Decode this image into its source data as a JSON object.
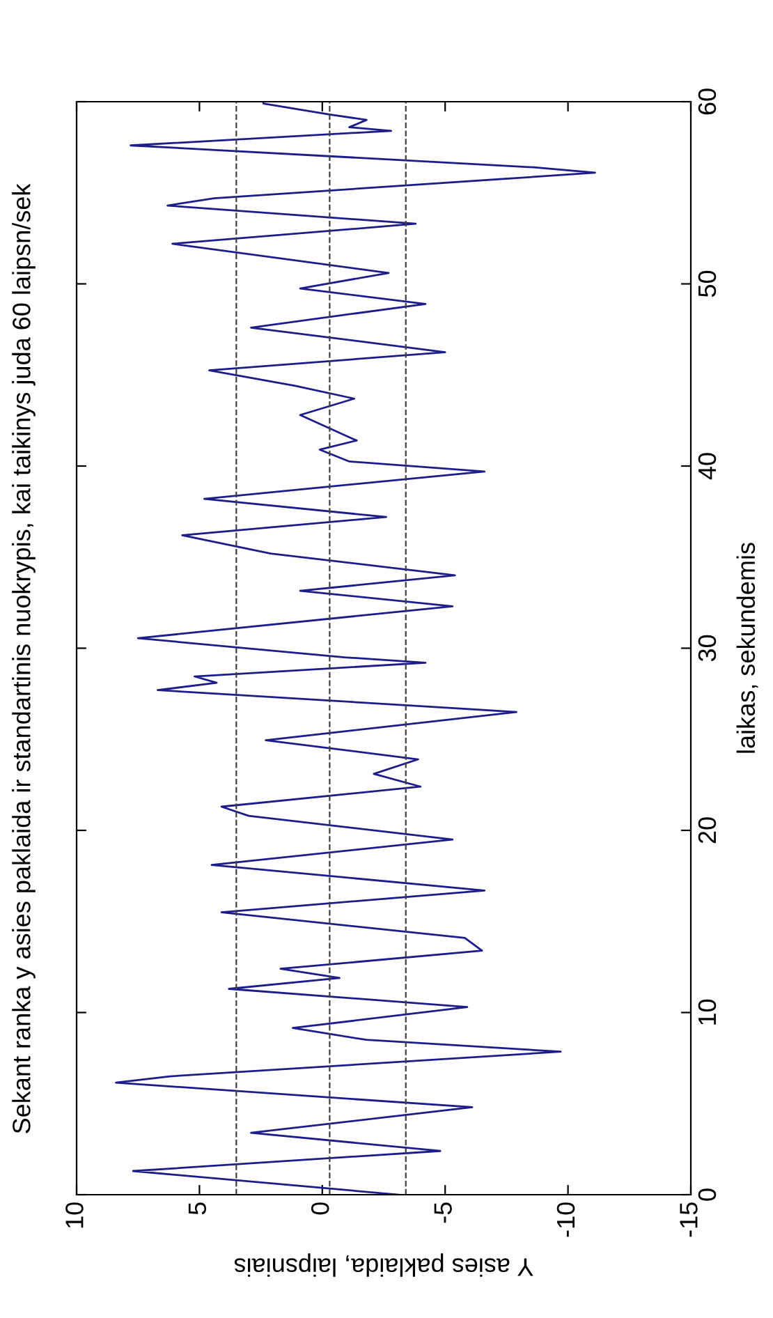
{
  "chart_data": {
    "type": "line",
    "title": "Sekant ranka y asies paklaida ir standartinis nuokrypis, kai taikinys juda 60 laipsn/sek",
    "xlabel": "Y asies paklaida, laipsniais",
    "ylabel": "laikas, sekundemis",
    "xlim": [
      10,
      -15
    ],
    "xticks": [
      10,
      5,
      0,
      -5,
      -10,
      -15
    ],
    "ylim": [
      0,
      60
    ],
    "yticks": [
      0,
      10,
      20,
      30,
      40,
      50,
      60
    ],
    "grid": false,
    "legend": false,
    "marker": "none",
    "line_style": "solid",
    "ref_lines": [
      {
        "axis": "x",
        "value": 3.5,
        "color": "#404040",
        "line_style": "dashed"
      },
      {
        "axis": "x",
        "value": -0.3,
        "color": "#404040",
        "line_style": "dashed"
      },
      {
        "axis": "x",
        "value": -3.4,
        "color": "#404040",
        "line_style": "dashed"
      }
    ],
    "series": [
      {
        "color": "#1c1c8a",
        "x": [
          -3.1,
          7.7,
          -4.8,
          2.9,
          -6.1,
          8.4,
          6.2,
          -9.7,
          -1.8,
          1.2,
          -5.9,
          3.8,
          -0.7,
          1.7,
          -6.5,
          -5.8,
          4.1,
          -6.6,
          4.5,
          -5.3,
          3.0,
          4.1,
          -4.0,
          -2.1,
          -3.9,
          2.3,
          -7.9,
          6.7,
          4.3,
          5.2,
          -4.2,
          -0.9,
          7.5,
          -5.3,
          0.9,
          -5.4,
          2.1,
          5.7,
          -2.6,
          4.8,
          -6.6,
          -1.1,
          0.1,
          -1.4,
          0.9,
          -1.3,
          1.1,
          4.6,
          -5.0,
          2.9,
          -4.2,
          0.9,
          -2.7,
          6.1,
          -3.8,
          6.3,
          4.4,
          -11.1,
          -8.6,
          7.8,
          -2.8,
          -1.1,
          -1.8,
          -0.3,
          2.4,
          2.4
        ],
        "values": [
          0,
          1.3,
          2.4,
          3.4,
          4.8,
          6.15,
          6.5,
          7.85,
          8.5,
          9.15,
          10.3,
          11.3,
          11.9,
          12.4,
          13.4,
          14.1,
          15.5,
          16.7,
          18.1,
          19.5,
          20.8,
          21.3,
          22.4,
          23.1,
          23.9,
          24.95,
          26.5,
          27.7,
          28.1,
          28.45,
          29.2,
          29.5,
          30.55,
          32.3,
          33.15,
          34.0,
          35.2,
          36.2,
          37.2,
          38.2,
          39.7,
          40.25,
          40.9,
          41.4,
          42.8,
          43.7,
          44.4,
          45.25,
          46.25,
          47.6,
          48.9,
          49.75,
          50.6,
          52.2,
          53.3,
          54.3,
          54.7,
          56.1,
          56.4,
          57.6,
          58.4,
          58.6,
          59.0,
          59.3,
          59.9,
          60
        ]
      }
    ]
  }
}
